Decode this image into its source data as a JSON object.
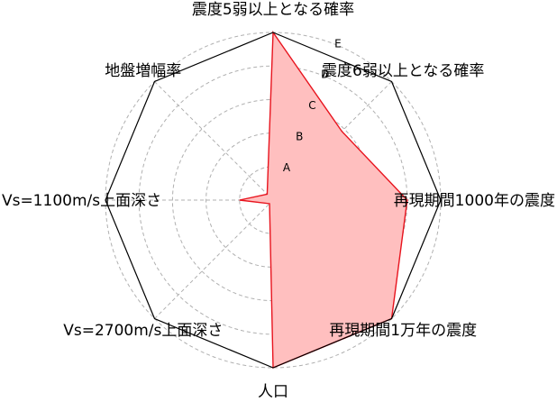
{
  "chart_data": {
    "type": "radar",
    "axes": [
      "震度5弱以上となる確率",
      "震度6弱以上となる確率",
      "再現期間1000年の震度",
      "再現期間1万年の震度",
      "人口",
      "Vs=2700m/s上面深さ",
      "Vs=1100m/s上面深さ",
      "地盤増幅率"
    ],
    "ring_labels": [
      "A",
      "B",
      "C",
      "D",
      "E"
    ],
    "rlim": [
      0,
      5
    ],
    "series": [
      {
        "values": [
          5.0,
          2.9,
          4.0,
          5.0,
          5.0,
          0.15,
          1.0,
          0.25
        ]
      }
    ],
    "grid": true,
    "colors": {
      "fill": "#ffbfbf",
      "line": "#e8141e",
      "frame": "#000000",
      "grid": "#b0b0b0"
    }
  }
}
